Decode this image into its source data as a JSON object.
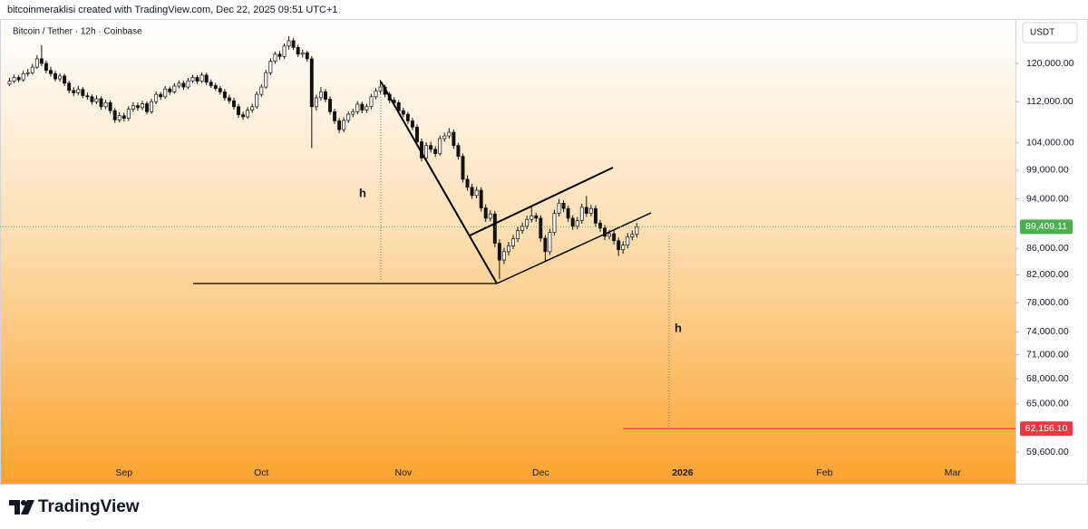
{
  "header": "bitcoinmeraklisi created with TradingView.com, Dec 22, 2025 09:51 UTC+1",
  "footer": "TradingView",
  "chart_data": {
    "type": "candlestick",
    "title": "Bitcoin / Tether · 12h · Coinbase",
    "currency": "USDT",
    "log_scale": true,
    "up_color": "#ffffff",
    "down_color": "#111111",
    "outline_color": "#111111",
    "ylim": [
      58540,
      129770
    ],
    "yticks": [
      {
        "value": 120000,
        "label": "120,000.00"
      },
      {
        "value": 112000,
        "label": "112,000.00"
      },
      {
        "value": 104000,
        "label": "104,000.00"
      },
      {
        "value": 99000,
        "label": "99,000.00"
      },
      {
        "value": 94000,
        "label": "94,000.00"
      },
      {
        "value": 86000,
        "label": "86,000.00"
      },
      {
        "value": 82000,
        "label": "82,000.00"
      },
      {
        "value": 78000,
        "label": "78,000.00"
      },
      {
        "value": 74000,
        "label": "74,000.00"
      },
      {
        "value": 71000,
        "label": "71,000.00"
      },
      {
        "value": 68000,
        "label": "68,000.00"
      },
      {
        "value": 65000,
        "label": "65,000.00"
      },
      {
        "value": 59600,
        "label": "59,600.00"
      }
    ],
    "xlim": [
      -0.5,
      219.3
    ],
    "xticks": [
      {
        "value": 25,
        "label": "Sep"
      },
      {
        "value": 55,
        "label": "Oct"
      },
      {
        "value": 86,
        "label": "Nov"
      },
      {
        "value": 116,
        "label": "Dec"
      },
      {
        "value": 147,
        "label": "2026"
      },
      {
        "value": 178,
        "label": "Feb"
      },
      {
        "value": 206,
        "label": "Mar"
      }
    ],
    "last_price": {
      "value": 89409.11,
      "label": "89,409.11",
      "color": "#4caf50"
    },
    "target_price": {
      "value": 62156.1,
      "label": "62,156.10",
      "color": "#f23645"
    },
    "annotations": [
      "h",
      "h"
    ],
    "ohlc": [
      [
        115600,
        116900,
        115200,
        116200
      ],
      [
        116200,
        117600,
        115800,
        117000
      ],
      [
        117000,
        117500,
        116000,
        116500
      ],
      [
        116500,
        118400,
        116100,
        117800
      ],
      [
        117800,
        118800,
        117200,
        118000
      ],
      [
        118000,
        119900,
        117600,
        119200
      ],
      [
        119200,
        121800,
        118800,
        121000
      ],
      [
        121000,
        124000,
        119400,
        120000
      ],
      [
        120000,
        120600,
        117900,
        118500
      ],
      [
        118500,
        119300,
        117200,
        117800
      ],
      [
        117800,
        118400,
        116200,
        116700
      ],
      [
        116700,
        117900,
        116100,
        117300
      ],
      [
        117300,
        117800,
        115200,
        115800
      ],
      [
        115800,
        116300,
        113700,
        114300
      ],
      [
        114300,
        115000,
        113100,
        113800
      ],
      [
        113800,
        115200,
        113300,
        114500
      ],
      [
        114500,
        115000,
        112700,
        113200
      ],
      [
        113200,
        113900,
        112400,
        113000
      ],
      [
        113000,
        113500,
        111400,
        112000
      ],
      [
        112000,
        113300,
        111500,
        112600
      ],
      [
        112600,
        113100,
        110400,
        111000
      ],
      [
        111000,
        112400,
        110500,
        111800
      ],
      [
        111800,
        112300,
        109600,
        110200
      ],
      [
        110200,
        110700,
        107800,
        108400
      ],
      [
        108400,
        109900,
        107900,
        109200
      ],
      [
        109200,
        109800,
        108100,
        108700
      ],
      [
        108700,
        111100,
        108200,
        110500
      ],
      [
        110500,
        111900,
        110000,
        111200
      ],
      [
        111200,
        111800,
        110200,
        110800
      ],
      [
        110800,
        112200,
        110300,
        111600
      ],
      [
        111600,
        112100,
        109500,
        110000
      ],
      [
        110000,
        112600,
        109600,
        112000
      ],
      [
        112000,
        114100,
        111500,
        113500
      ],
      [
        113500,
        114000,
        112400,
        113000
      ],
      [
        113000,
        115200,
        112600,
        114600
      ],
      [
        114600,
        115100,
        113400,
        114000
      ],
      [
        114000,
        115800,
        113600,
        115200
      ],
      [
        115200,
        116400,
        114700,
        115800
      ],
      [
        115800,
        116300,
        114400,
        115000
      ],
      [
        115000,
        116900,
        114600,
        116300
      ],
      [
        116300,
        117600,
        115800,
        117000
      ],
      [
        117000,
        117500,
        115600,
        116200
      ],
      [
        116200,
        118100,
        115800,
        117500
      ],
      [
        117500,
        118000,
        115400,
        116000
      ],
      [
        116000,
        116600,
        114800,
        115300
      ],
      [
        115300,
        115900,
        114200,
        114700
      ],
      [
        114700,
        115200,
        113400,
        114000
      ],
      [
        114000,
        114600,
        112200,
        112800
      ],
      [
        112800,
        113400,
        111600,
        112200
      ],
      [
        112200,
        112800,
        110400,
        111000
      ],
      [
        111000,
        111600,
        108800,
        109400
      ],
      [
        109400,
        110000,
        108400,
        109000
      ],
      [
        109000,
        110900,
        108600,
        110300
      ],
      [
        110300,
        111600,
        109800,
        111000
      ],
      [
        111000,
        114100,
        110600,
        113500
      ],
      [
        113500,
        115600,
        113000,
        115000
      ],
      [
        115000,
        118600,
        114600,
        118000
      ],
      [
        118000,
        121100,
        117500,
        120500
      ],
      [
        120500,
        122600,
        119900,
        122000
      ],
      [
        122000,
        122700,
        120800,
        121500
      ],
      [
        121500,
        124400,
        121000,
        123800
      ],
      [
        123800,
        126000,
        123000,
        125000
      ],
      [
        125000,
        125600,
        122900,
        123500
      ],
      [
        123500,
        124100,
        121400,
        122000
      ],
      [
        122000,
        123000,
        121300,
        122300
      ],
      [
        122300,
        122800,
        120400,
        121000
      ],
      [
        121000,
        121600,
        103000,
        111000
      ],
      [
        111000,
        113400,
        110200,
        112800
      ],
      [
        112800,
        115000,
        112200,
        114000
      ],
      [
        114000,
        114600,
        111900,
        112500
      ],
      [
        112500,
        113100,
        109400,
        110000
      ],
      [
        110000,
        110600,
        107600,
        108200
      ],
      [
        108200,
        108800,
        105800,
        106500
      ],
      [
        106500,
        108900,
        106000,
        108300
      ],
      [
        108300,
        110100,
        107800,
        109500
      ],
      [
        109500,
        110600,
        108900,
        110000
      ],
      [
        110000,
        112100,
        109500,
        111500
      ],
      [
        111500,
        112000,
        109700,
        110300
      ],
      [
        110300,
        111600,
        109800,
        111000
      ],
      [
        111000,
        113600,
        110500,
        113000
      ],
      [
        113000,
        114800,
        112500,
        114200
      ],
      [
        114200,
        116500,
        113600,
        115000
      ],
      [
        115000,
        115500,
        112900,
        113500
      ],
      [
        113500,
        114000,
        111700,
        112300
      ],
      [
        112300,
        112900,
        111200,
        111800
      ],
      [
        111800,
        112300,
        109600,
        110200
      ],
      [
        110200,
        110800,
        108900,
        109500
      ],
      [
        109500,
        110000,
        107600,
        108200
      ],
      [
        108200,
        108800,
        106400,
        107000
      ],
      [
        107000,
        107500,
        103600,
        104200
      ],
      [
        104200,
        104800,
        100600,
        101200
      ],
      [
        101200,
        104100,
        100700,
        103500
      ],
      [
        103500,
        104200,
        102200,
        102800
      ],
      [
        102800,
        103400,
        101400,
        102000
      ],
      [
        102000,
        105400,
        101600,
        104800
      ],
      [
        104800,
        105900,
        104200,
        105300
      ],
      [
        105300,
        106800,
        104800,
        106000
      ],
      [
        106000,
        106500,
        102900,
        103500
      ],
      [
        103500,
        104000,
        100900,
        101500
      ],
      [
        101500,
        102000,
        96800,
        97400
      ],
      [
        97400,
        98100,
        95400,
        96000
      ],
      [
        96000,
        96600,
        94000,
        94600
      ],
      [
        94600,
        96100,
        94100,
        95500
      ],
      [
        95500,
        96000,
        91900,
        92500
      ],
      [
        92500,
        93100,
        90200,
        90800
      ],
      [
        90800,
        92100,
        90300,
        91500
      ],
      [
        91500,
        92000,
        86200,
        86800
      ],
      [
        86800,
        87400,
        81400,
        84200
      ],
      [
        84200,
        86100,
        83600,
        85500
      ],
      [
        85500,
        87000,
        84900,
        86400
      ],
      [
        86400,
        88100,
        85900,
        87500
      ],
      [
        87500,
        89400,
        87000,
        88800
      ],
      [
        88800,
        90100,
        88300,
        89500
      ],
      [
        89500,
        91200,
        89000,
        90600
      ],
      [
        90600,
        92800,
        90100,
        91200
      ],
      [
        91200,
        91700,
        90200,
        90800
      ],
      [
        90800,
        91300,
        87000,
        87600
      ],
      [
        87600,
        88100,
        84000,
        85500
      ],
      [
        85500,
        89100,
        85000,
        88500
      ],
      [
        88500,
        92200,
        88000,
        91600
      ],
      [
        91600,
        94000,
        91100,
        93300
      ],
      [
        93300,
        93800,
        91800,
        92400
      ],
      [
        92400,
        92900,
        90200,
        90800
      ],
      [
        90800,
        91300,
        88900,
        89500
      ],
      [
        89500,
        91000,
        89000,
        90400
      ],
      [
        90400,
        93200,
        89900,
        92600
      ],
      [
        92600,
        94500,
        91000,
        91600
      ],
      [
        91600,
        93000,
        91100,
        92400
      ],
      [
        92400,
        92900,
        89400,
        90000
      ],
      [
        90000,
        90500,
        88600,
        89200
      ],
      [
        89200,
        89700,
        87300,
        87900
      ],
      [
        87900,
        88900,
        87400,
        88300
      ],
      [
        88300,
        88800,
        86600,
        87200
      ],
      [
        87200,
        87700,
        84800,
        85800
      ],
      [
        85800,
        87100,
        85200,
        86500
      ],
      [
        86500,
        88400,
        86000,
        87800
      ],
      [
        87800,
        88800,
        87300,
        88200
      ],
      [
        88200,
        90000,
        87700,
        89409.11
      ]
    ]
  }
}
